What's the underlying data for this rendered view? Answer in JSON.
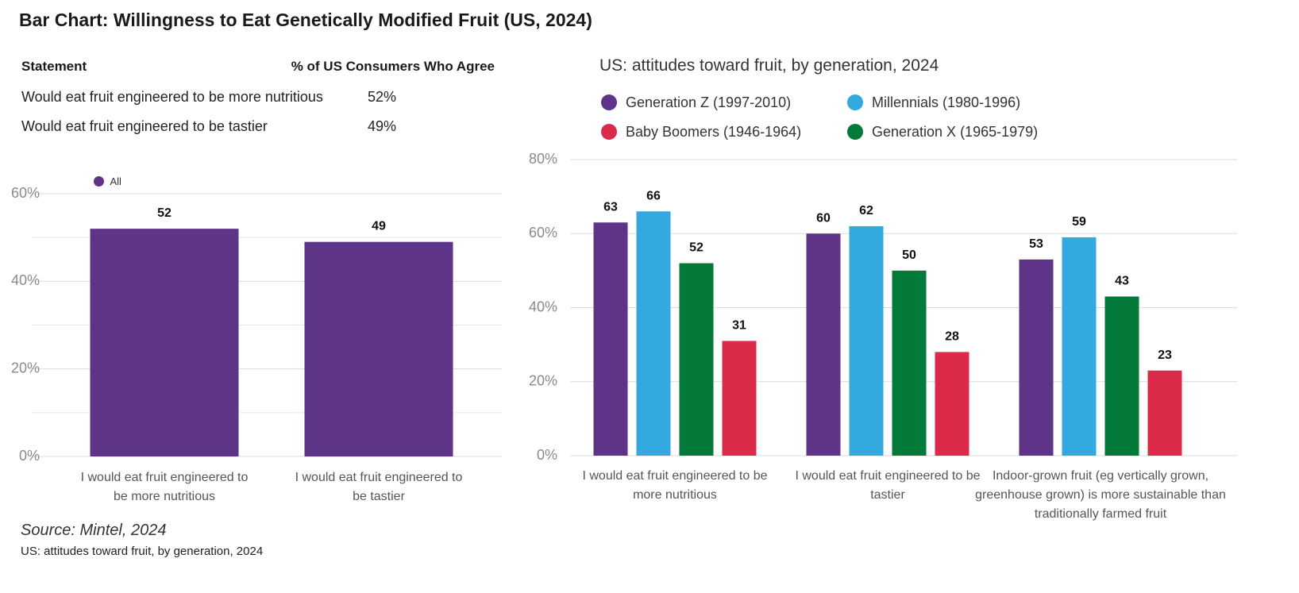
{
  "title": "Bar Chart: Willingness to Eat Genetically Modified Fruit (US, 2024)",
  "table": {
    "header": [
      "Statement",
      "% of US Consumers Who Agree"
    ],
    "rows": [
      [
        "Would eat fruit engineered to be more nutritious",
        "52%"
      ],
      [
        "Would eat fruit engineered to be tastier",
        "49%"
      ]
    ]
  },
  "chart_data": [
    {
      "type": "bar",
      "categories": [
        "I would eat fruit engineered to be more nutritious",
        "I would eat fruit engineered to be tastier"
      ],
      "series": [
        {
          "name": "All",
          "color": "#5e3489",
          "values": [
            52,
            49
          ]
        }
      ],
      "ylim": [
        0,
        60
      ],
      "yticks": [
        {
          "value": 0,
          "label": "0%"
        },
        {
          "value": 20,
          "label": "20%"
        },
        {
          "value": 40,
          "label": "40%"
        },
        {
          "value": 60,
          "label": "60%"
        }
      ],
      "minor_yticks": [
        10,
        30,
        50
      ],
      "grid": true,
      "legend": "top-left"
    },
    {
      "type": "bar",
      "title": "US:  attitudes toward fruit, by generation, 2024",
      "categories": [
        "I would eat fruit engineered to be more nutritious",
        "I would eat fruit engineered to be tastier",
        "Indoor-grown fruit (eg vertically grown, greenhouse grown) is more sustainable than traditionally farmed fruit"
      ],
      "series": [
        {
          "name": "Generation Z (1997-2010)",
          "color": "#5e3489",
          "values": [
            63,
            60,
            53
          ]
        },
        {
          "name": "Millennials (1980-1996)",
          "color": "#33a9df",
          "values": [
            66,
            62,
            59
          ]
        },
        {
          "name": "Generation X (1965-1979)",
          "color": "#037a3a",
          "values": [
            52,
            50,
            43
          ]
        },
        {
          "name": "Baby Boomers (1946-1964)",
          "color": "#dc2a4b",
          "values": [
            31,
            28,
            23
          ]
        }
      ],
      "ylim": [
        0,
        80
      ],
      "yticks": [
        {
          "value": 0,
          "label": "0%"
        },
        {
          "value": 20,
          "label": "20%"
        },
        {
          "value": 40,
          "label": "40%"
        },
        {
          "value": 60,
          "label": "60%"
        },
        {
          "value": 80,
          "label": "80%"
        }
      ],
      "grid": true,
      "legend": "top"
    }
  ],
  "source": "Source: Mintel, 2024",
  "note": "US: attitudes toward fruit, by generation, 2024"
}
